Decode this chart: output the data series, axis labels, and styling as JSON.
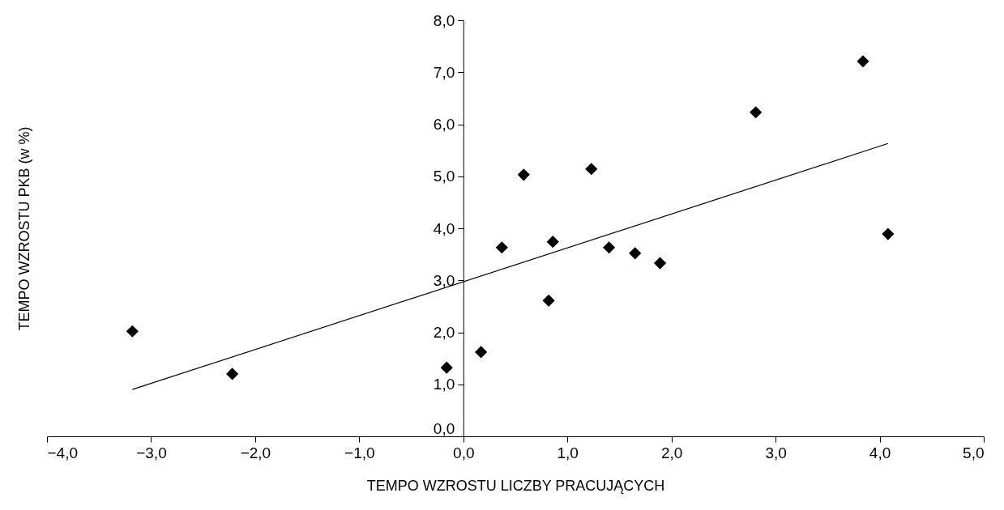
{
  "chart_data": {
    "type": "scatter",
    "xlabel": "TEMPO WZROSTU LICZBY PRACUJĄCYCH",
    "ylabel": "TEMPO WZROSTU PKB (w %)",
    "xlim": [
      -4,
      5
    ],
    "ylim": [
      0,
      8
    ],
    "xticks": [
      {
        "value": -4,
        "label": "−4,0"
      },
      {
        "value": -3,
        "label": "−3,0"
      },
      {
        "value": -2,
        "label": "−2,0"
      },
      {
        "value": -1,
        "label": "−1,0"
      },
      {
        "value": 0,
        "label": "0,0"
      },
      {
        "value": 1,
        "label": "1,0"
      },
      {
        "value": 2,
        "label": "2,0"
      },
      {
        "value": 3,
        "label": "3,0"
      },
      {
        "value": 4,
        "label": "4,0"
      },
      {
        "value": 5,
        "label": "5,0"
      }
    ],
    "yticks": [
      {
        "value": 0,
        "label": "0,0"
      },
      {
        "value": 1,
        "label": "1,0"
      },
      {
        "value": 2,
        "label": "2,0"
      },
      {
        "value": 3,
        "label": "3,0"
      },
      {
        "value": 4,
        "label": "4,0"
      },
      {
        "value": 5,
        "label": "5,0"
      },
      {
        "value": 6,
        "label": "6,0"
      },
      {
        "value": 7,
        "label": "7,0"
      },
      {
        "value": 8,
        "label": "8,0"
      }
    ],
    "marker": "diamond",
    "series": [
      {
        "color": "#000000",
        "x": [
          -3.18,
          -2.22,
          -0.16,
          0.17,
          0.37,
          0.58,
          0.82,
          0.86,
          1.23,
          1.4,
          1.65,
          1.89,
          2.81,
          3.84,
          4.08
        ],
        "values": [
          2.02,
          1.2,
          1.32,
          1.62,
          3.63,
          5.03,
          2.61,
          3.74,
          5.14,
          3.63,
          3.52,
          3.33,
          6.23,
          7.21,
          3.89
        ]
      },
      {
        "type": "line",
        "color": "#000000",
        "line_style": "solid",
        "marker": "none",
        "x": [
          -3.18,
          4.08
        ],
        "values": [
          0.9,
          5.63
        ]
      }
    ]
  }
}
